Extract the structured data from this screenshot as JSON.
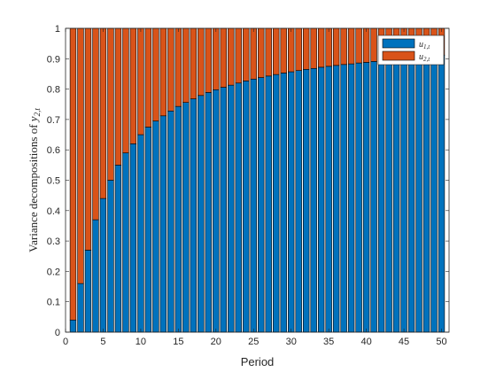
{
  "chart_data": {
    "type": "bar",
    "stacked": true,
    "title": "",
    "xlabel": "Period",
    "ylabel_main": "Variance decompositions of ",
    "ylabel_var": "y",
    "ylabel_sub": "2,t",
    "xlim": [
      0,
      51
    ],
    "ylim": [
      0,
      1
    ],
    "xticks": [
      0,
      5,
      10,
      15,
      20,
      25,
      30,
      35,
      40,
      45,
      50
    ],
    "yticks": [
      0,
      0.1,
      0.2,
      0.3,
      0.4,
      0.5,
      0.6,
      0.7,
      0.8,
      0.9,
      1
    ],
    "ytick_labels": [
      "0",
      "0.1",
      "0.2",
      "0.3",
      "0.4",
      "0.5",
      "0.6",
      "0.7",
      "0.8",
      "0.9",
      "1"
    ],
    "legend_position": "top-right",
    "grid": false,
    "x": [
      1,
      2,
      3,
      4,
      5,
      6,
      7,
      8,
      9,
      10,
      11,
      12,
      13,
      14,
      15,
      16,
      17,
      18,
      19,
      20,
      21,
      22,
      23,
      24,
      25,
      26,
      27,
      28,
      29,
      30,
      31,
      32,
      33,
      34,
      35,
      36,
      37,
      38,
      39,
      40,
      41,
      42,
      43,
      44,
      45,
      46,
      47,
      48,
      49,
      50
    ],
    "series": [
      {
        "name_var": "u",
        "name_sub": "1,t",
        "color": "#0072BD",
        "values": [
          0.04,
          0.16,
          0.27,
          0.37,
          0.44,
          0.5,
          0.55,
          0.59,
          0.62,
          0.65,
          0.675,
          0.695,
          0.712,
          0.728,
          0.743,
          0.756,
          0.768,
          0.779,
          0.789,
          0.798,
          0.806,
          0.813,
          0.82,
          0.827,
          0.833,
          0.838,
          0.843,
          0.848,
          0.853,
          0.857,
          0.861,
          0.865,
          0.868,
          0.872,
          0.875,
          0.878,
          0.881,
          0.883,
          0.886,
          0.888,
          0.891,
          0.893,
          0.895,
          0.897,
          0.899,
          0.901,
          0.903,
          0.905,
          0.907,
          0.912
        ]
      },
      {
        "name_var": "u",
        "name_sub": "2,t",
        "color": "#D95319",
        "values": [
          0.96,
          0.84,
          0.73,
          0.63,
          0.56,
          0.5,
          0.45,
          0.41,
          0.38,
          0.35,
          0.325,
          0.305,
          0.288,
          0.272,
          0.257,
          0.244,
          0.232,
          0.221,
          0.211,
          0.202,
          0.194,
          0.187,
          0.18,
          0.173,
          0.167,
          0.162,
          0.157,
          0.152,
          0.147,
          0.143,
          0.139,
          0.135,
          0.132,
          0.128,
          0.125,
          0.122,
          0.119,
          0.117,
          0.114,
          0.112,
          0.109,
          0.107,
          0.105,
          0.103,
          0.101,
          0.099,
          0.097,
          0.095,
          0.093,
          0.088
        ]
      }
    ]
  }
}
